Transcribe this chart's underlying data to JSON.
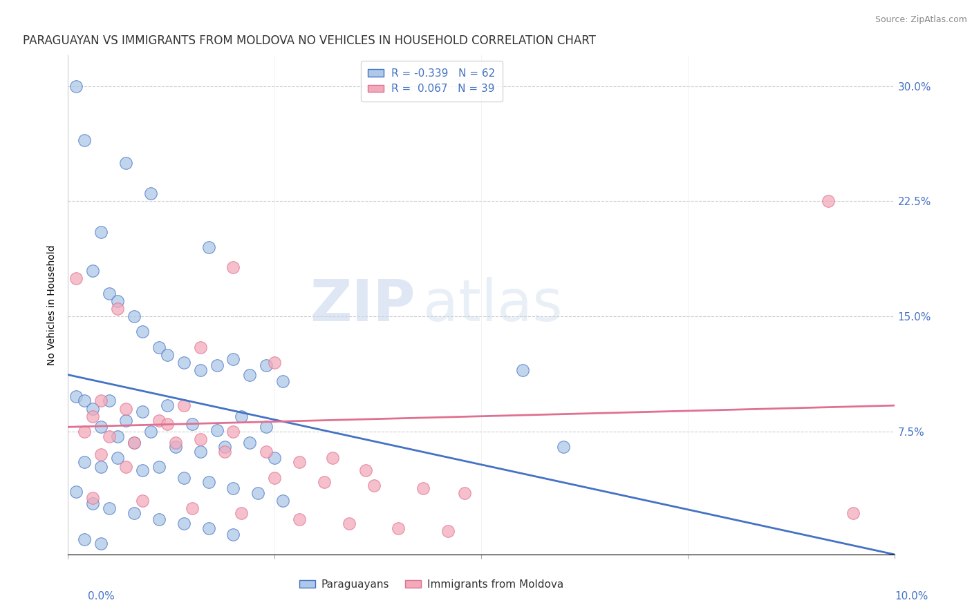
{
  "title": "PARAGUAYAN VS IMMIGRANTS FROM MOLDOVA NO VEHICLES IN HOUSEHOLD CORRELATION CHART",
  "source": "Source: ZipAtlas.com",
  "ylabel": "No Vehicles in Household",
  "xlim": [
    0.0,
    0.1
  ],
  "ylim": [
    -0.005,
    0.32
  ],
  "blue_color": "#adc8e8",
  "pink_color": "#f2aabb",
  "line_blue": "#4472c4",
  "line_pink": "#e07090",
  "watermark_zip": "ZIP",
  "watermark_atlas": "atlas",
  "legend_R_blue": "R = -0.339",
  "legend_N_blue": "N = 62",
  "legend_R_pink": "R =  0.067",
  "legend_N_pink": "N = 39",
  "blue_scatter_x": [
    0.001,
    0.007,
    0.01,
    0.002,
    0.004,
    0.017,
    0.003,
    0.005,
    0.006,
    0.008,
    0.009,
    0.011,
    0.012,
    0.014,
    0.016,
    0.018,
    0.02,
    0.022,
    0.024,
    0.026,
    0.001,
    0.003,
    0.005,
    0.007,
    0.009,
    0.012,
    0.015,
    0.018,
    0.021,
    0.024,
    0.002,
    0.004,
    0.006,
    0.008,
    0.01,
    0.013,
    0.016,
    0.019,
    0.022,
    0.025,
    0.002,
    0.004,
    0.006,
    0.009,
    0.011,
    0.014,
    0.017,
    0.02,
    0.023,
    0.026,
    0.001,
    0.003,
    0.005,
    0.008,
    0.011,
    0.014,
    0.017,
    0.02,
    0.055,
    0.06,
    0.002,
    0.004
  ],
  "blue_scatter_y": [
    0.3,
    0.25,
    0.23,
    0.265,
    0.205,
    0.195,
    0.18,
    0.165,
    0.16,
    0.15,
    0.14,
    0.13,
    0.125,
    0.12,
    0.115,
    0.118,
    0.122,
    0.112,
    0.118,
    0.108,
    0.098,
    0.09,
    0.095,
    0.082,
    0.088,
    0.092,
    0.08,
    0.076,
    0.085,
    0.078,
    0.095,
    0.078,
    0.072,
    0.068,
    0.075,
    0.065,
    0.062,
    0.065,
    0.068,
    0.058,
    0.055,
    0.052,
    0.058,
    0.05,
    0.052,
    0.045,
    0.042,
    0.038,
    0.035,
    0.03,
    0.036,
    0.028,
    0.025,
    0.022,
    0.018,
    0.015,
    0.012,
    0.008,
    0.115,
    0.065,
    0.005,
    0.002
  ],
  "pink_scatter_x": [
    0.001,
    0.006,
    0.02,
    0.004,
    0.016,
    0.025,
    0.003,
    0.007,
    0.011,
    0.014,
    0.002,
    0.005,
    0.008,
    0.012,
    0.016,
    0.02,
    0.024,
    0.028,
    0.032,
    0.036,
    0.004,
    0.007,
    0.013,
    0.019,
    0.025,
    0.031,
    0.037,
    0.043,
    0.048,
    0.092,
    0.003,
    0.009,
    0.015,
    0.021,
    0.028,
    0.034,
    0.04,
    0.046,
    0.095
  ],
  "pink_scatter_y": [
    0.175,
    0.155,
    0.182,
    0.095,
    0.13,
    0.12,
    0.085,
    0.09,
    0.082,
    0.092,
    0.075,
    0.072,
    0.068,
    0.08,
    0.07,
    0.075,
    0.062,
    0.055,
    0.058,
    0.05,
    0.06,
    0.052,
    0.068,
    0.062,
    0.045,
    0.042,
    0.04,
    0.038,
    0.035,
    0.225,
    0.032,
    0.03,
    0.025,
    0.022,
    0.018,
    0.015,
    0.012,
    0.01,
    0.022
  ],
  "blue_line_x": [
    0.0,
    0.1
  ],
  "blue_line_y": [
    0.112,
    -0.005
  ],
  "pink_line_x": [
    0.0,
    0.1
  ],
  "pink_line_y": [
    0.078,
    0.092
  ]
}
